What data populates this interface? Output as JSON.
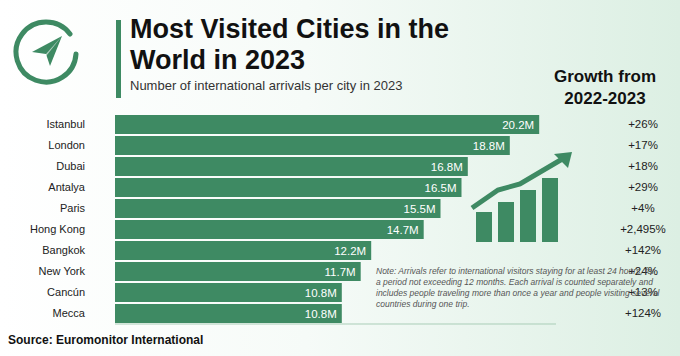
{
  "chart_data": {
    "type": "bar",
    "orientation": "horizontal",
    "title": "Most Visited Cities in the World in 2023",
    "subtitle": "Number of international arrivals per city in 2023",
    "categories": [
      "Istanbul",
      "London",
      "Dubai",
      "Antalya",
      "Paris",
      "Hong Kong",
      "Bangkok",
      "New York",
      "Cancún",
      "Mecca"
    ],
    "values": [
      20.2,
      18.8,
      16.8,
      16.5,
      15.5,
      14.7,
      12.2,
      11.7,
      10.8,
      10.8
    ],
    "value_labels": [
      "20.2M",
      "18.8M",
      "16.8M",
      "16.5M",
      "15.5M",
      "14.7M",
      "12.2M",
      "11.7M",
      "10.8M",
      "10.8M"
    ],
    "data_labels": true,
    "color": "#3e8a63",
    "xlim": [
      0,
      21
    ],
    "tick_labels": "y",
    "grid": false,
    "growth": {
      "title": "Growth from 2022-2023",
      "values": [
        26,
        17,
        18,
        29,
        4,
        2495,
        142,
        24,
        13,
        124
      ],
      "value_labels": [
        "+26%",
        "+17%",
        "+18%",
        "+29%",
        "+4%",
        "+2,495%",
        "+142%",
        "+24%",
        "+13%",
        "+124%"
      ]
    },
    "note": "Note: Arrivals refer to international visitors staying for at least 24 hours, for a period not exceeding 12 months. Each arrival is counted separately and includes people traveling more than once a year and people visiting several countries during one trip.",
    "source": "Source: Euromonitor International"
  }
}
